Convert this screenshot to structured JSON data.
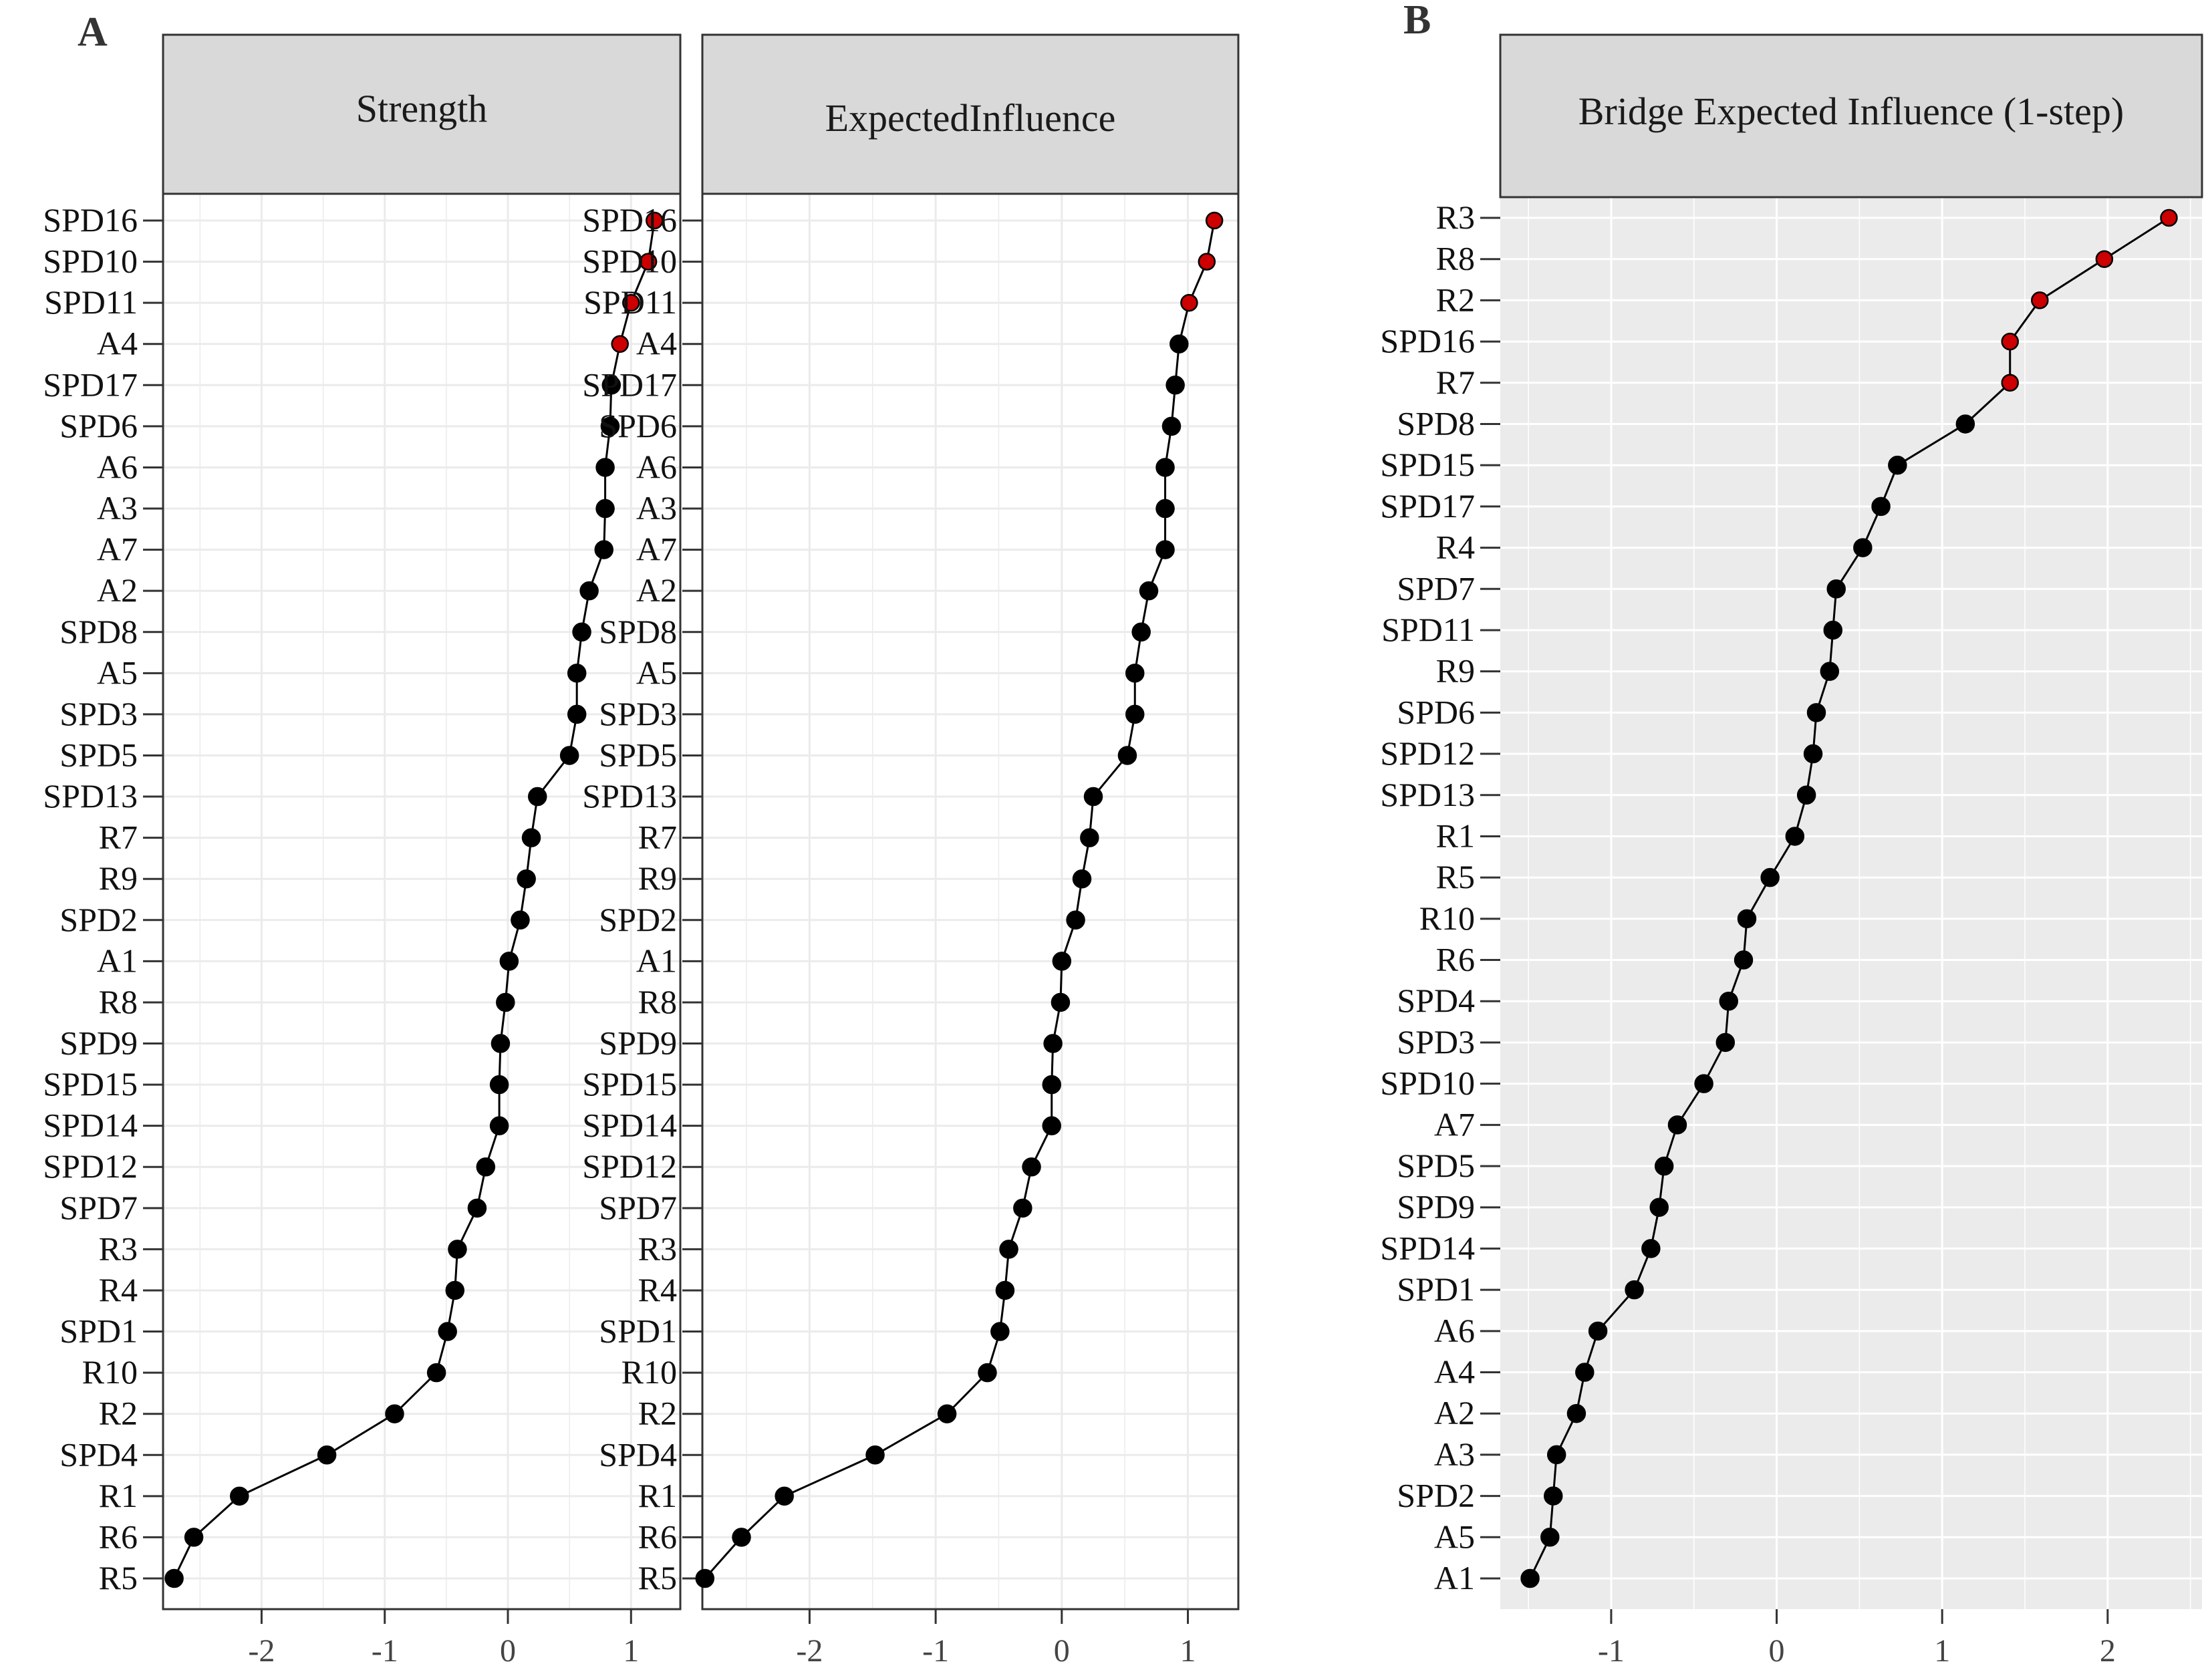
{
  "colors": {
    "highlight": "#cc0000",
    "normal": "#000000",
    "strip_fill": "#d9d9d9",
    "panel_b_bg": "#ebebeb",
    "grid": "#ebebeb",
    "grid_b": "#ffffff"
  },
  "panel_labels": {
    "a": "A",
    "b": "B"
  },
  "chart_data": [
    {
      "type": "line",
      "panel": "A",
      "title": "Strength",
      "xlim": [
        -2.8,
        1.4
      ],
      "xticks": [
        -2,
        -1,
        0,
        1
      ],
      "xtick_labels": [
        "-2",
        "-1",
        "0",
        "1"
      ],
      "highlight_count": 4,
      "nodes": [
        "SPD16",
        "SPD10",
        "SPD11",
        "A4",
        "SPD17",
        "SPD6",
        "A6",
        "A3",
        "A7",
        "A2",
        "SPD8",
        "A5",
        "SPD3",
        "SPD5",
        "SPD13",
        "R7",
        "R9",
        "SPD2",
        "A1",
        "R8",
        "SPD9",
        "SPD15",
        "SPD14",
        "SPD12",
        "SPD7",
        "R3",
        "R4",
        "SPD1",
        "R10",
        "R2",
        "SPD4",
        "R1",
        "R6",
        "R5"
      ],
      "values": [
        1.19,
        1.14,
        1.0,
        0.91,
        0.84,
        0.83,
        0.79,
        0.79,
        0.78,
        0.66,
        0.6,
        0.56,
        0.56,
        0.5,
        0.24,
        0.19,
        0.15,
        0.1,
        0.01,
        -0.02,
        -0.06,
        -0.07,
        -0.07,
        -0.18,
        -0.25,
        -0.41,
        -0.43,
        -0.49,
        -0.58,
        -0.92,
        -1.47,
        -2.18,
        -2.55,
        -2.71
      ]
    },
    {
      "type": "line",
      "panel": "A",
      "title": "ExpectedInfluence",
      "xlim": [
        -2.85,
        1.4
      ],
      "xticks": [
        -2,
        -1,
        0,
        1
      ],
      "xtick_labels": [
        "-2",
        "-1",
        "0",
        "1"
      ],
      "highlight_count": 3,
      "nodes": [
        "SPD16",
        "SPD10",
        "SPD11",
        "A4",
        "SPD17",
        "SPD6",
        "A6",
        "A3",
        "A7",
        "A2",
        "SPD8",
        "A5",
        "SPD3",
        "SPD5",
        "SPD13",
        "R7",
        "R9",
        "SPD2",
        "A1",
        "R8",
        "SPD9",
        "SPD15",
        "SPD14",
        "SPD12",
        "SPD7",
        "R3",
        "R4",
        "SPD1",
        "R10",
        "R2",
        "SPD4",
        "R1",
        "R6",
        "R5"
      ],
      "values": [
        1.21,
        1.15,
        1.01,
        0.93,
        0.9,
        0.87,
        0.82,
        0.82,
        0.82,
        0.69,
        0.63,
        0.58,
        0.58,
        0.52,
        0.25,
        0.22,
        0.16,
        0.11,
        0.0,
        -0.01,
        -0.07,
        -0.08,
        -0.08,
        -0.24,
        -0.31,
        -0.42,
        -0.45,
        -0.49,
        -0.59,
        -0.91,
        -1.48,
        -2.2,
        -2.54,
        -2.83
      ]
    },
    {
      "type": "line",
      "panel": "B",
      "title": "Bridge Expected Influence (1-step)",
      "xlim": [
        -1.67,
        2.57
      ],
      "xticks": [
        -1,
        0,
        1,
        2
      ],
      "xtick_labels": [
        "-1",
        "0",
        "1",
        "2"
      ],
      "highlight_count": 5,
      "nodes": [
        "R3",
        "R8",
        "R2",
        "SPD16",
        "R7",
        "SPD8",
        "SPD15",
        "SPD17",
        "R4",
        "SPD7",
        "SPD11",
        "R9",
        "SPD6",
        "SPD12",
        "SPD13",
        "R1",
        "R5",
        "R10",
        "R6",
        "SPD4",
        "SPD3",
        "SPD10",
        "A7",
        "SPD5",
        "SPD9",
        "SPD14",
        "SPD1",
        "A6",
        "A4",
        "A2",
        "A3",
        "SPD2",
        "A5",
        "A1"
      ],
      "values": [
        2.37,
        1.98,
        1.59,
        1.41,
        1.41,
        1.14,
        0.73,
        0.63,
        0.52,
        0.36,
        0.34,
        0.32,
        0.24,
        0.22,
        0.18,
        0.11,
        -0.04,
        -0.18,
        -0.2,
        -0.29,
        -0.31,
        -0.44,
        -0.6,
        -0.68,
        -0.71,
        -0.76,
        -0.86,
        -1.08,
        -1.16,
        -1.21,
        -1.33,
        -1.35,
        -1.37,
        -1.49
      ]
    }
  ]
}
